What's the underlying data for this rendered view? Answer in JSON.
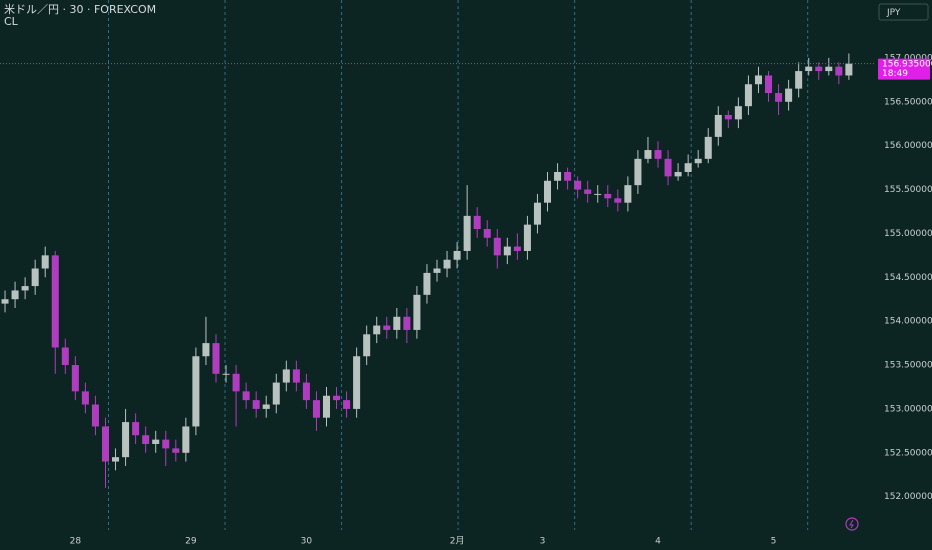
{
  "chart_data": {
    "type": "candlestick",
    "title": "米ドル／円 · 30 · FOREXCOM",
    "subtitle": "CL",
    "currency": "JPY",
    "up_color": "#b8c2bf",
    "down_color": "#b03cc0",
    "series": {
      "open": [
        154.2,
        154.25,
        154.35,
        154.4,
        154.6,
        154.75,
        153.7,
        153.5,
        153.2,
        153.05,
        152.8,
        152.4,
        152.45,
        152.85,
        152.7,
        152.6,
        152.65,
        152.55,
        152.5,
        152.8,
        153.6,
        153.75,
        153.4,
        153.4,
        153.2,
        153.1,
        153.0,
        153.05,
        153.3,
        153.45,
        153.3,
        153.1,
        152.9,
        153.15,
        153.1,
        153.0,
        153.6,
        153.85,
        153.95,
        153.9,
        154.05,
        153.9,
        154.3,
        154.55,
        154.6,
        154.7,
        154.8,
        155.2,
        155.05,
        154.95,
        154.75,
        154.85,
        154.8,
        155.1,
        155.35,
        155.6,
        155.7,
        155.6,
        155.5,
        155.45,
        155.45,
        155.4,
        155.35,
        155.55,
        155.85,
        155.95,
        155.85,
        155.65,
        155.7,
        155.8,
        155.85,
        156.1,
        156.35,
        156.3,
        156.45,
        156.7,
        156.8,
        156.6,
        156.5,
        156.65,
        156.85,
        156.9,
        156.85,
        156.9,
        156.8
      ],
      "high": [
        154.35,
        154.45,
        154.5,
        154.7,
        154.85,
        154.8,
        153.8,
        153.6,
        153.3,
        153.15,
        152.9,
        152.55,
        153.0,
        152.95,
        152.8,
        152.75,
        152.75,
        152.65,
        152.9,
        153.7,
        154.05,
        153.85,
        153.5,
        153.5,
        153.3,
        153.2,
        153.15,
        153.4,
        153.55,
        153.55,
        153.4,
        153.2,
        153.25,
        153.25,
        153.2,
        153.7,
        153.95,
        154.05,
        154.05,
        154.15,
        154.15,
        154.4,
        154.65,
        154.7,
        154.8,
        154.9,
        155.55,
        155.3,
        155.15,
        155.05,
        154.95,
        155.0,
        155.2,
        155.45,
        155.7,
        155.8,
        155.75,
        155.65,
        155.6,
        155.55,
        155.55,
        155.5,
        155.65,
        155.95,
        156.1,
        156.05,
        155.95,
        155.8,
        155.9,
        155.95,
        156.2,
        156.45,
        156.4,
        156.55,
        156.8,
        156.9,
        156.85,
        156.7,
        156.75,
        156.95,
        157.0,
        156.95,
        157.0,
        156.95,
        157.05
      ],
      "low": [
        154.1,
        154.15,
        154.25,
        154.3,
        154.5,
        153.4,
        153.4,
        153.1,
        152.95,
        152.7,
        152.1,
        152.3,
        152.35,
        152.6,
        152.5,
        152.5,
        152.35,
        152.4,
        152.4,
        152.7,
        153.5,
        153.3,
        153.3,
        152.8,
        153.0,
        152.9,
        152.9,
        152.95,
        153.2,
        153.2,
        153.0,
        152.75,
        152.8,
        153.0,
        152.9,
        152.9,
        153.5,
        153.75,
        153.8,
        153.8,
        153.75,
        153.8,
        154.2,
        154.45,
        154.5,
        154.6,
        154.7,
        154.95,
        154.85,
        154.6,
        154.65,
        154.7,
        154.7,
        155.0,
        155.25,
        155.5,
        155.5,
        155.4,
        155.35,
        155.35,
        155.3,
        155.25,
        155.25,
        155.45,
        155.8,
        155.75,
        155.55,
        155.6,
        155.65,
        155.75,
        155.8,
        156.0,
        156.2,
        156.2,
        156.35,
        156.6,
        156.5,
        156.35,
        156.4,
        156.55,
        156.8,
        156.75,
        156.8,
        156.7,
        156.75
      ],
      "close": [
        154.25,
        154.35,
        154.4,
        154.6,
        154.75,
        153.7,
        153.5,
        153.2,
        153.05,
        152.8,
        152.4,
        152.45,
        152.85,
        152.7,
        152.6,
        152.65,
        152.55,
        152.5,
        152.8,
        153.6,
        153.75,
        153.4,
        153.4,
        153.2,
        153.1,
        153.0,
        153.05,
        153.3,
        153.45,
        153.3,
        153.1,
        152.9,
        153.15,
        153.1,
        153.0,
        153.6,
        153.85,
        153.95,
        153.9,
        154.05,
        153.9,
        154.3,
        154.55,
        154.6,
        154.7,
        154.8,
        155.2,
        155.05,
        154.95,
        154.75,
        154.85,
        154.8,
        155.1,
        155.35,
        155.6,
        155.7,
        155.6,
        155.5,
        155.45,
        155.45,
        155.4,
        155.35,
        155.55,
        155.85,
        155.95,
        155.85,
        155.65,
        155.7,
        155.8,
        155.85,
        156.1,
        156.35,
        156.3,
        156.45,
        156.7,
        156.8,
        156.6,
        156.5,
        156.65,
        156.85,
        156.9,
        156.85,
        156.9,
        156.8,
        156.935
      ]
    },
    "xlim": [
      0,
      87
    ],
    "xticks": [
      {
        "value": 7.5,
        "label": "28"
      },
      {
        "value": 19,
        "label": "29"
      },
      {
        "value": 30.5,
        "label": "30"
      },
      {
        "value": 45.5,
        "label": "2月"
      },
      {
        "value": 54,
        "label": "3"
      },
      {
        "value": 65.5,
        "label": "4"
      },
      {
        "value": 77,
        "label": "5"
      }
    ],
    "xgrid": [
      10.8,
      22.4,
      34,
      45.6,
      57.2,
      68.8,
      80.4
    ],
    "ylim": [
      151.62,
      157.66
    ],
    "yticks": [
      {
        "value": 152,
        "label": "152.000000"
      },
      {
        "value": 152.5,
        "label": "152.500000"
      },
      {
        "value": 153,
        "label": "153.000000"
      },
      {
        "value": 153.5,
        "label": "153.500000"
      },
      {
        "value": 154,
        "label": "154.000000"
      },
      {
        "value": 154.5,
        "label": "154.500000"
      },
      {
        "value": 155,
        "label": "155.000000"
      },
      {
        "value": 155.5,
        "label": "155.500000"
      },
      {
        "value": 156,
        "label": "156.000000"
      },
      {
        "value": 156.5,
        "label": "156.500000"
      },
      {
        "value": 157,
        "label": "157.000000"
      }
    ],
    "last_price": {
      "value": 156.935,
      "label": "156.935000"
    },
    "countdown": "18:49"
  }
}
